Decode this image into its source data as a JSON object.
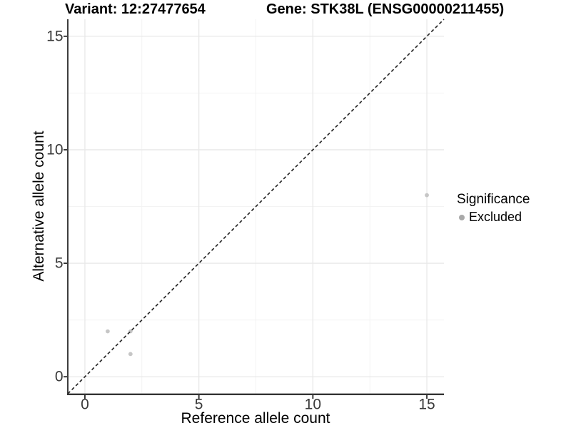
{
  "figure": {
    "title_variant": "Variant: 12:27477654",
    "title_gene": "Gene: STK38L (ENSG00000211455)"
  },
  "chart_data": {
    "type": "scatter",
    "titles": {
      "left": "Variant: 12:27477654",
      "right": "Gene: STK38L (ENSG00000211455)"
    },
    "xlabel": "Reference allele count",
    "ylabel": "Alternative allele count",
    "xlim": [
      -0.75,
      15.75
    ],
    "ylim": [
      -0.75,
      15.75
    ],
    "xticks": [
      0,
      5,
      10,
      15
    ],
    "yticks": [
      0,
      5,
      10,
      15
    ],
    "xminor": [
      2.5,
      7.5,
      12.5
    ],
    "yminor": [
      2.5,
      7.5,
      12.5
    ],
    "grid": "major-and-minor",
    "points": [
      {
        "x": 1,
        "y": 2,
        "significance": "Excluded"
      },
      {
        "x": 2,
        "y": 2,
        "significance": "Excluded"
      },
      {
        "x": 2,
        "y": 1,
        "significance": "Excluded"
      },
      {
        "x": 15,
        "y": 8,
        "significance": "Excluded"
      }
    ],
    "reference_line": {
      "style": "dashed",
      "from": [
        -0.75,
        -0.75
      ],
      "to": [
        15.75,
        15.75
      ],
      "meaning": "identity y = x"
    },
    "legend": {
      "title": "Significance",
      "position": "right",
      "items": [
        {
          "label": "Excluded",
          "color": "#a9a9a9"
        }
      ]
    },
    "colors": {
      "point": "#c6c6c6",
      "dashed_line": "#2b2b2b",
      "grid_major": "#e8e8e8",
      "grid_minor": "#f3f3f3",
      "axis_line": "#333333",
      "tick_mark": "#333333",
      "tick_label": "#3a3a3a"
    }
  }
}
